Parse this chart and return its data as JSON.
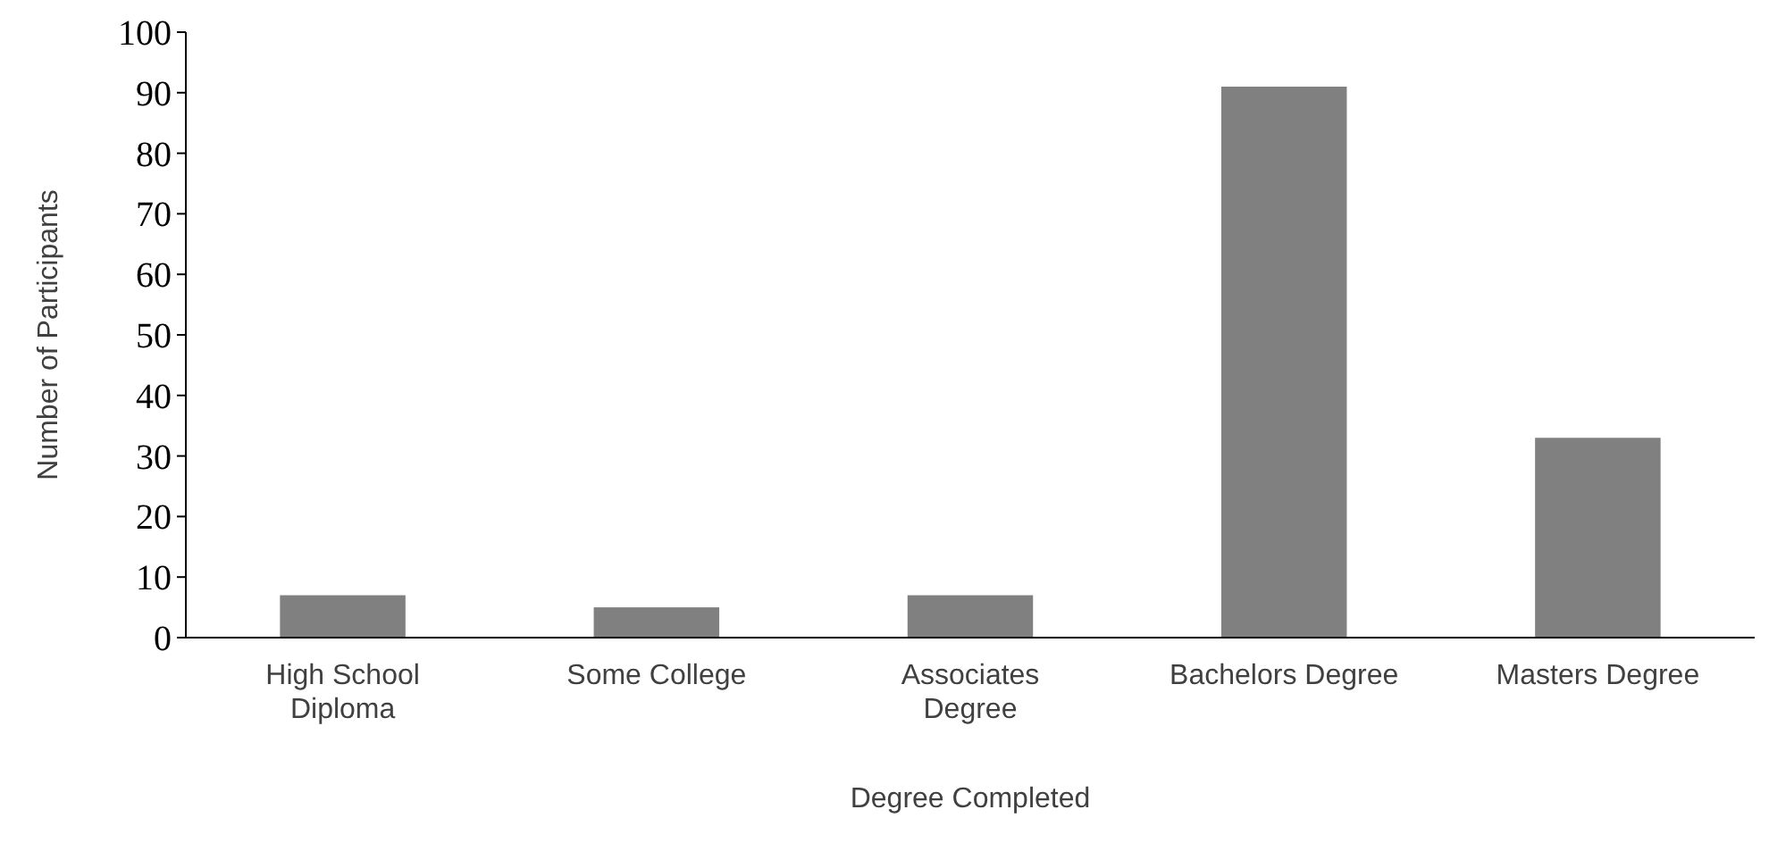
{
  "chart_data": {
    "type": "bar",
    "xlabel": "Degree Completed",
    "ylabel": "Number of Participants",
    "categories": [
      "High School Diploma",
      "Some College",
      "Associates Degree",
      "Bachelors Degree",
      "Masters Degree"
    ],
    "values": [
      7,
      5,
      7,
      91,
      33
    ],
    "color": "#808080",
    "ylim": [
      0,
      100
    ],
    "yticks": [
      0,
      10,
      20,
      30,
      40,
      50,
      60,
      70,
      80,
      90,
      100
    ],
    "grid": false
  }
}
